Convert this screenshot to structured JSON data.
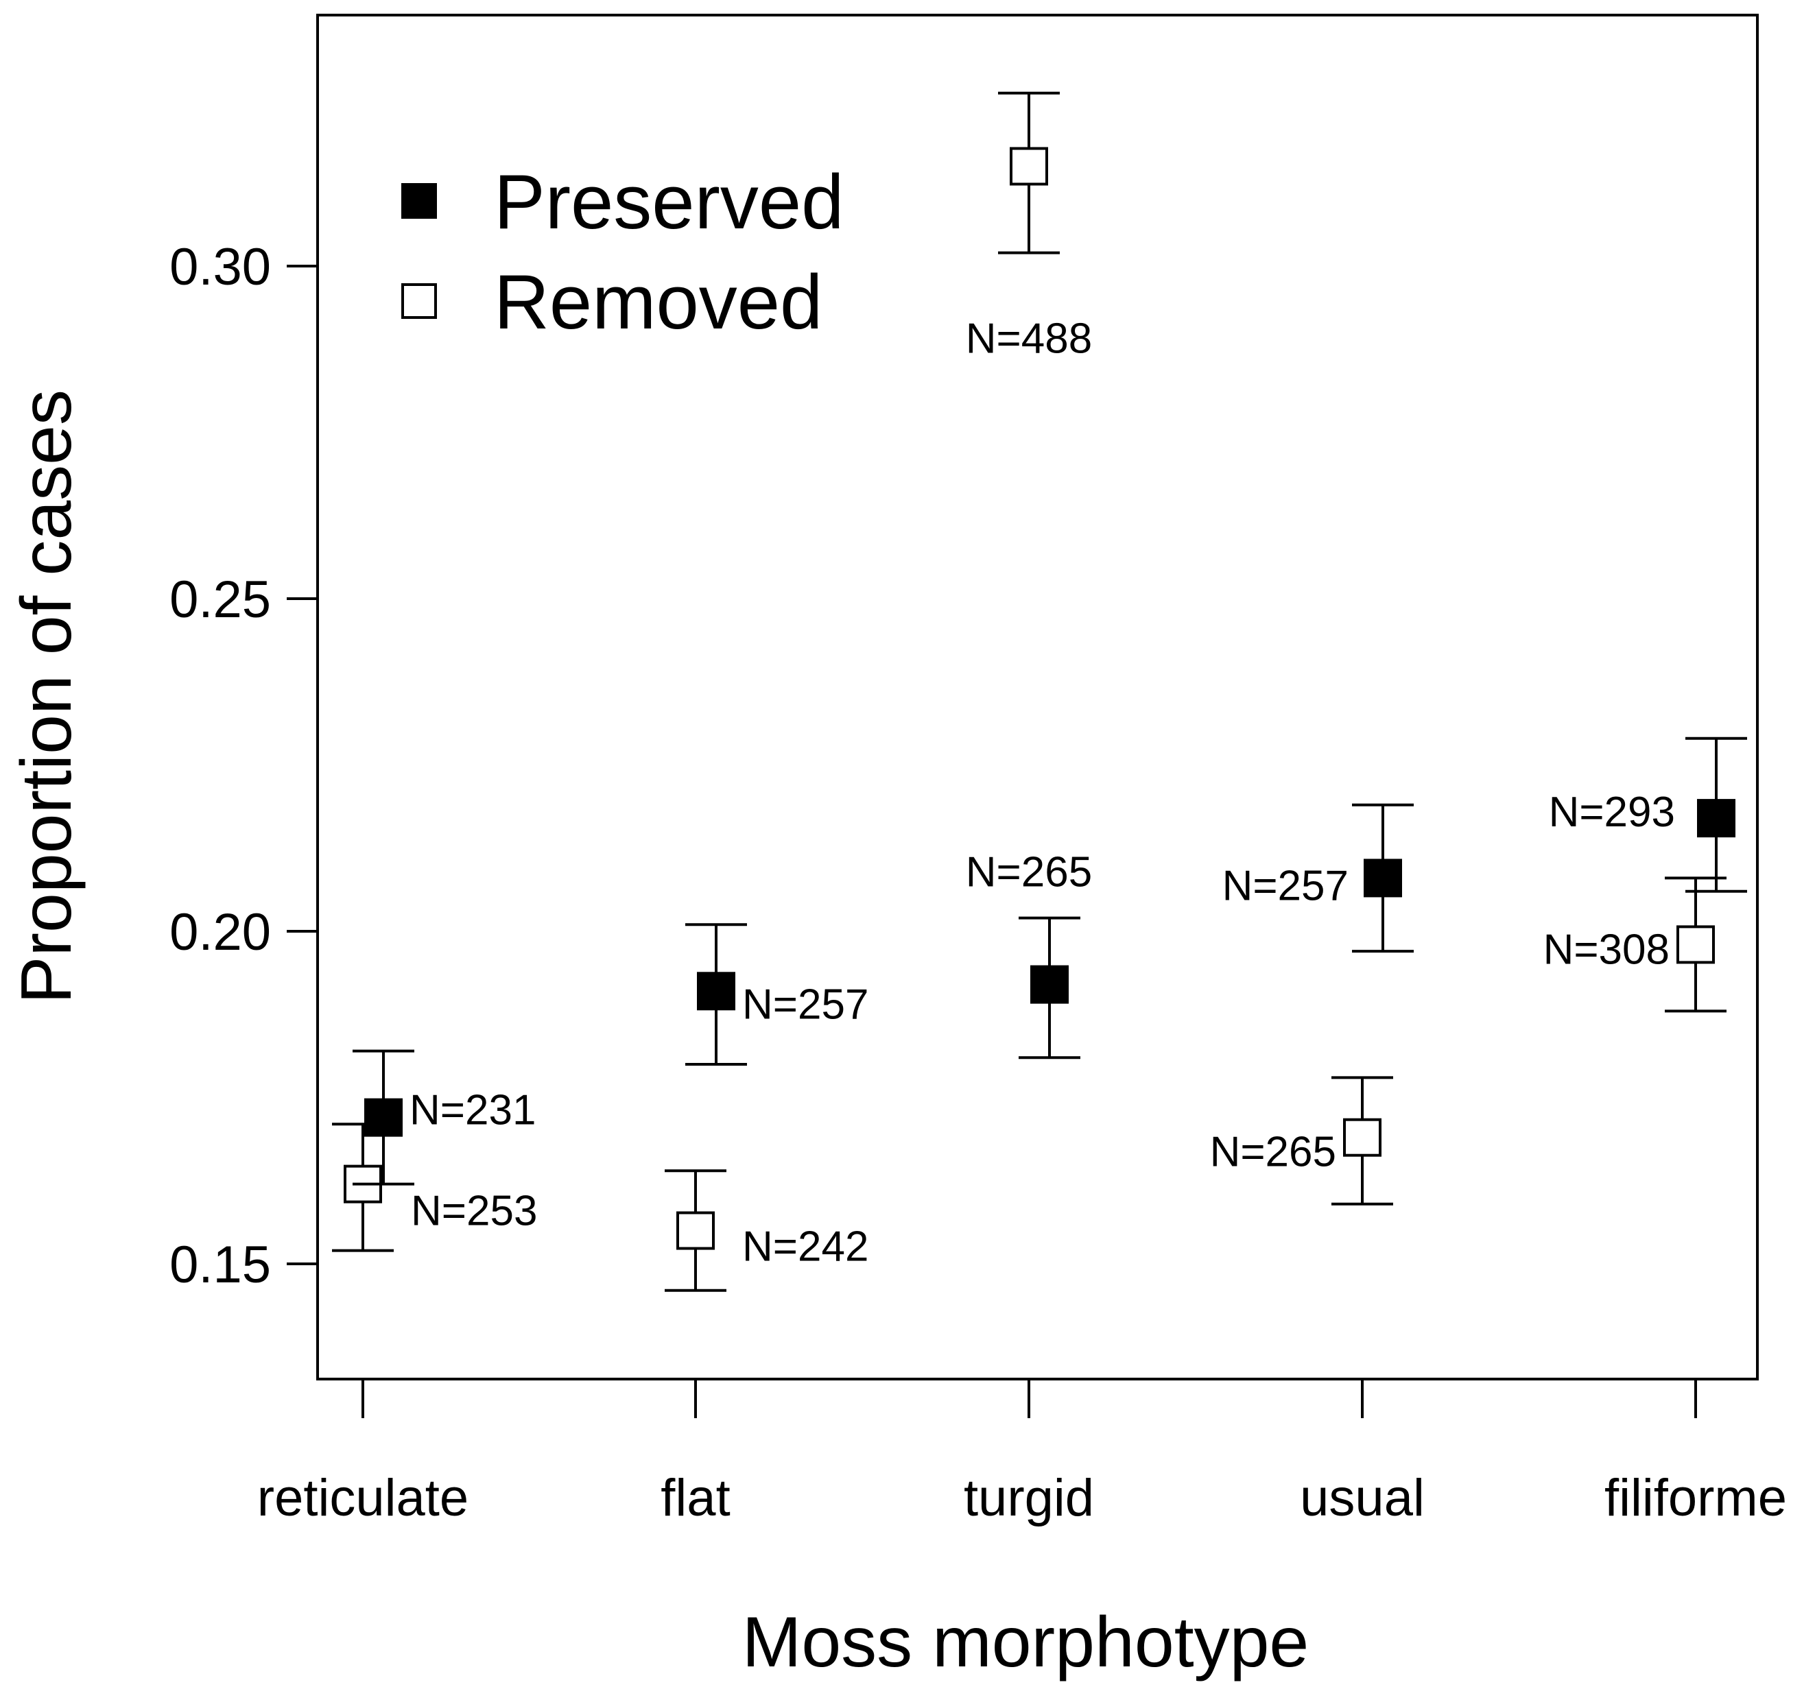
{
  "chart_data": {
    "type": "scatter",
    "title": "",
    "xlabel": "Moss morphotype",
    "ylabel": "Proportion of cases",
    "categories": [
      "reticulate",
      "flat",
      "turgid",
      "usual",
      "filiforme"
    ],
    "yticks": [
      "0.15",
      "0.20",
      "0.25",
      "0.30"
    ],
    "ylim": [
      0.13,
      0.33
    ],
    "legend_position": "top-left",
    "series": [
      {
        "name": "Preserved",
        "marker": "filled-square",
        "color": "#000000",
        "values": [
          0.172,
          0.191,
          0.192,
          0.208,
          0.217
        ],
        "lower": [
          0.162,
          0.18,
          0.181,
          0.197,
          0.206
        ],
        "upper": [
          0.182,
          0.201,
          0.202,
          0.219,
          0.229
        ],
        "n_labels": [
          "N=231",
          "N=257",
          "N=265",
          "N=257",
          "N=293"
        ]
      },
      {
        "name": "Removed",
        "marker": "open-square",
        "color": "#000000",
        "values": [
          0.162,
          0.155,
          0.315,
          0.169,
          0.198
        ],
        "lower": [
          0.152,
          0.146,
          0.302,
          0.159,
          0.188
        ],
        "upper": [
          0.171,
          0.164,
          0.326,
          0.178,
          0.208
        ],
        "n_labels": [
          "N=253",
          "N=242",
          "N=488",
          "N=265",
          "N=308"
        ]
      }
    ]
  }
}
